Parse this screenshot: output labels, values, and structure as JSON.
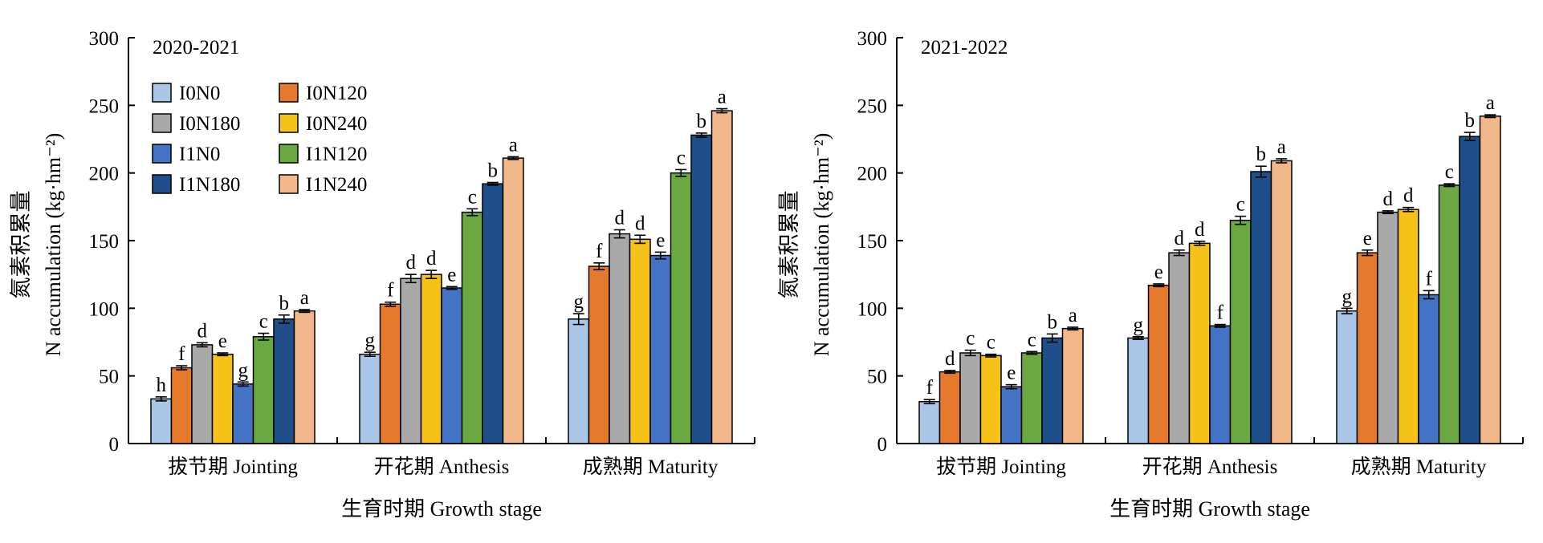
{
  "legend": [
    {
      "name": "I0N0",
      "color": "#a9c6e6"
    },
    {
      "name": "I0N120",
      "color": "#e57a2c"
    },
    {
      "name": "I0N180",
      "color": "#a9a9a9"
    },
    {
      "name": "I0N240",
      "color": "#f6c21a"
    },
    {
      "name": "I1N0",
      "color": "#4472c4"
    },
    {
      "name": "I1N120",
      "color": "#6aa842"
    },
    {
      "name": "I1N180",
      "color": "#1e4f8a"
    },
    {
      "name": "I1N240",
      "color": "#f2b88c"
    }
  ],
  "chart_data": [
    {
      "type": "bar",
      "title": "2020-2021",
      "xlabel": "生育时期 Growth stage",
      "ylabel_cn": "氮素积累量",
      "ylabel": "N accumulation (kg·hm⁻²)",
      "ylim": [
        0,
        300
      ],
      "yticks": [
        0,
        50,
        100,
        150,
        200,
        250,
        300
      ],
      "categories": [
        "拔节期 Jointing",
        "开花期 Anthesis",
        "成熟期 Maturity"
      ],
      "legend_position": "top-left",
      "series": [
        {
          "name": "I0N0",
          "values": [
            33,
            66,
            92
          ],
          "errors": [
            1.5,
            1.5,
            4
          ],
          "letters": [
            "h",
            "g",
            "g"
          ]
        },
        {
          "name": "I0N120",
          "values": [
            56,
            103,
            131
          ],
          "errors": [
            1.5,
            1.5,
            2.5
          ],
          "letters": [
            "f",
            "f",
            "f"
          ]
        },
        {
          "name": "I0N180",
          "values": [
            73,
            122,
            155
          ],
          "errors": [
            1.5,
            3,
            3
          ],
          "letters": [
            "d",
            "d",
            "d"
          ]
        },
        {
          "name": "I0N240",
          "values": [
            66,
            125,
            151
          ],
          "errors": [
            1,
            3,
            3
          ],
          "letters": [
            "e",
            "d",
            "d"
          ]
        },
        {
          "name": "I1N0",
          "values": [
            44,
            115,
            139
          ],
          "errors": [
            1.5,
            1,
            2.5
          ],
          "letters": [
            "g",
            "e",
            "e"
          ]
        },
        {
          "name": "I1N120",
          "values": [
            79,
            171,
            200
          ],
          "errors": [
            2.5,
            2.5,
            2.5
          ],
          "letters": [
            "c",
            "c",
            "c"
          ]
        },
        {
          "name": "I1N180",
          "values": [
            92,
            192,
            228
          ],
          "errors": [
            3,
            1,
            1.5
          ],
          "letters": [
            "b",
            "b",
            "b"
          ]
        },
        {
          "name": "I1N240",
          "values": [
            98,
            211,
            246
          ],
          "errors": [
            1,
            1,
            1.5
          ],
          "letters": [
            "a",
            "a",
            "a"
          ]
        }
      ]
    },
    {
      "type": "bar",
      "title": "2021-2022",
      "xlabel": "生育时期 Growth stage",
      "ylabel_cn": "氮素积累量",
      "ylabel": "N accumulation (kg·hm⁻²)",
      "ylim": [
        0,
        300
      ],
      "yticks": [
        0,
        50,
        100,
        150,
        200,
        250,
        300
      ],
      "categories": [
        "拔节期 Jointing",
        "开花期 Anthesis",
        "成熟期 Maturity"
      ],
      "series": [
        {
          "name": "I0N0",
          "values": [
            31,
            78,
            98
          ],
          "errors": [
            1.5,
            1,
            2
          ],
          "letters": [
            "f",
            "g",
            "g"
          ]
        },
        {
          "name": "I0N120",
          "values": [
            53,
            117,
            141
          ],
          "errors": [
            1,
            1,
            2
          ],
          "letters": [
            "d",
            "e",
            "e"
          ]
        },
        {
          "name": "I0N180",
          "values": [
            67,
            141,
            171
          ],
          "errors": [
            2,
            2,
            1
          ],
          "letters": [
            "c",
            "d",
            "d"
          ]
        },
        {
          "name": "I0N240",
          "values": [
            65,
            148,
            173
          ],
          "errors": [
            1,
            1.5,
            1.5
          ],
          "letters": [
            "c",
            "d",
            "d"
          ]
        },
        {
          "name": "I1N0",
          "values": [
            42,
            87,
            110
          ],
          "errors": [
            1.5,
            1,
            3
          ],
          "letters": [
            "e",
            "f",
            "f"
          ]
        },
        {
          "name": "I1N120",
          "values": [
            67,
            165,
            191
          ],
          "errors": [
            1,
            3,
            1
          ],
          "letters": [
            "c",
            "c",
            "c"
          ]
        },
        {
          "name": "I1N180",
          "values": [
            78,
            201,
            227
          ],
          "errors": [
            3,
            4,
            3
          ],
          "letters": [
            "b",
            "b",
            "b"
          ]
        },
        {
          "name": "I1N240",
          "values": [
            85,
            209,
            242
          ],
          "errors": [
            1,
            1.5,
            1
          ],
          "letters": [
            "a",
            "a",
            "a"
          ]
        }
      ]
    }
  ]
}
